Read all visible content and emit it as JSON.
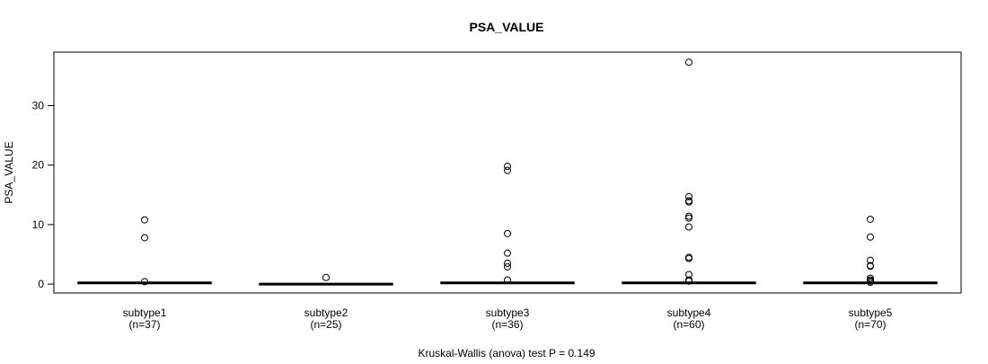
{
  "chart_data": {
    "type": "boxplot",
    "title": "PSA_VALUE",
    "ylabel": "PSA_VALUE",
    "xlabel": "",
    "subtitle": "Kruskal-Wallis (anova) test P = 0.149",
    "ylim": [
      -1.5,
      39
    ],
    "yticks": [
      0,
      10,
      20,
      30
    ],
    "grid": false,
    "categories": [
      {
        "name": "subtype1",
        "count_label": "(n=37)",
        "median": 0.2,
        "outliers": [
          10.8,
          7.8,
          0.4
        ]
      },
      {
        "name": "subtype2",
        "count_label": "(n=25)",
        "median": 0.0,
        "outliers": [
          1.1
        ]
      },
      {
        "name": "subtype3",
        "count_label": "(n=36)",
        "median": 0.2,
        "outliers": [
          19.8,
          19.1,
          8.5,
          5.2,
          3.5,
          2.9,
          0.7
        ]
      },
      {
        "name": "subtype4",
        "count_label": "(n=60)",
        "median": 0.2,
        "outliers": [
          37.3,
          14.7,
          14.0,
          13.8,
          11.4,
          11.1,
          9.6,
          4.5,
          4.3,
          1.6,
          0.7,
          0.5
        ]
      },
      {
        "name": "subtype5",
        "count_label": "(n=70)",
        "median": 0.2,
        "outliers": [
          10.9,
          7.9,
          4.0,
          3.1,
          3.0,
          1.0,
          0.7,
          0.5,
          0.3
        ]
      }
    ]
  }
}
